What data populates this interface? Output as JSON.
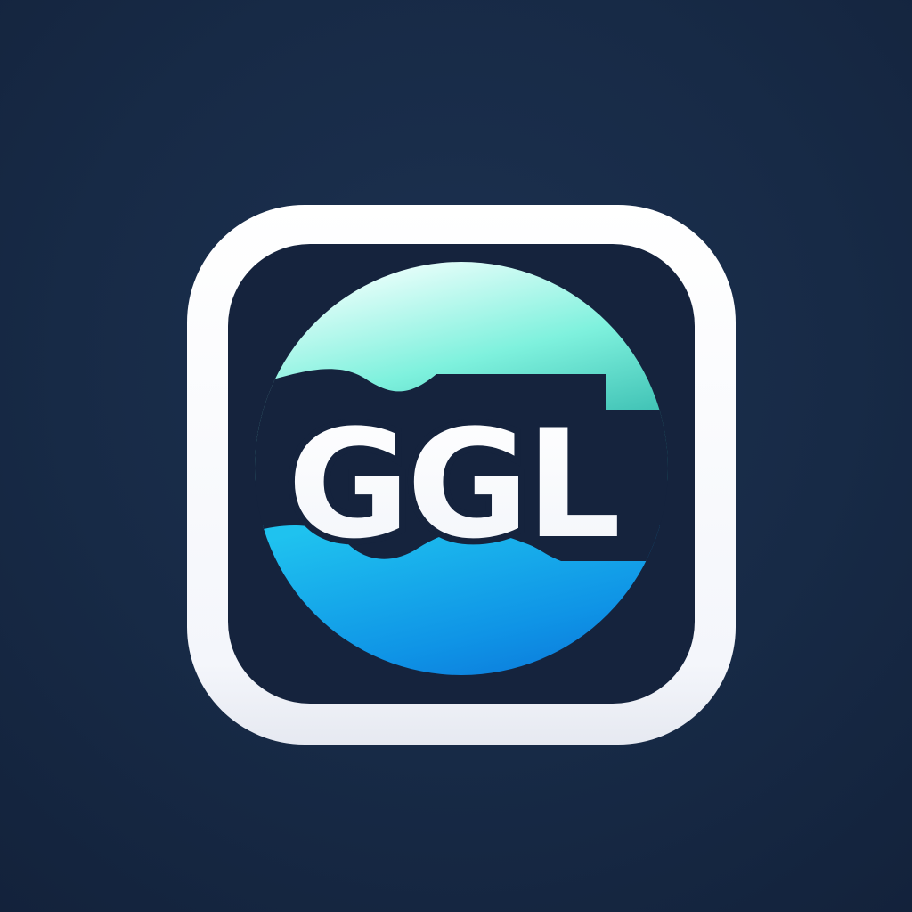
{
  "logo": {
    "wordmark": "GGL"
  },
  "colors": {
    "background": "#172a46",
    "frame": "#ffffff",
    "inner": "#15233d",
    "globe_top": "#55ecd9",
    "globe_bottom": "#0c7ee0",
    "text": "#ffffff"
  },
  "icons": [
    "app-icon",
    "globe-icon"
  ]
}
